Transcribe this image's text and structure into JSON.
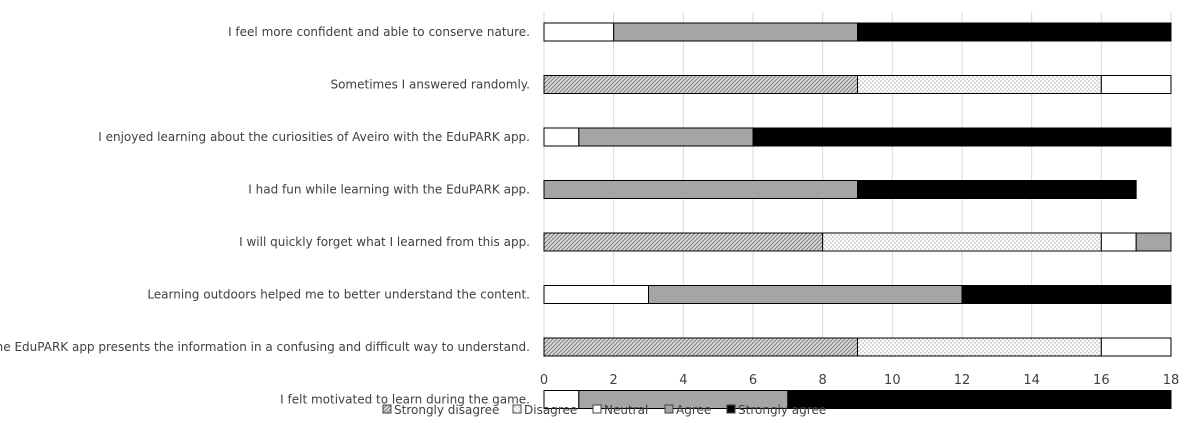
{
  "chart_data": {
    "type": "bar",
    "orientation": "horizontal",
    "stacked": true,
    "title": "",
    "xlabel": "",
    "ylabel": "",
    "xlim": [
      0,
      18
    ],
    "xticks": [
      0,
      2,
      4,
      6,
      8,
      10,
      12,
      14,
      16,
      18
    ],
    "grid": "vertical",
    "legend_position": "bottom",
    "categories": [
      "I feel more confident and able to conserve nature.",
      "Sometimes I answered randomly.",
      "I enjoyed learning about the curiosities of Aveiro with the EduPARK app.",
      "I had fun while learning with the EduPARK app.",
      "I will quickly forget what I learned from this app.",
      "Learning outdoors helped me to better understand the content.",
      "The EduPARK app presents the information in a confusing and difficult way to understand.",
      "I felt motivated to learn during the game."
    ],
    "series": [
      {
        "name": "Strongly disagree",
        "fill": "hatch",
        "values": [
          0,
          9,
          0,
          0,
          8,
          0,
          9,
          0
        ]
      },
      {
        "name": "Disagree",
        "fill": "dots",
        "values": [
          0,
          7,
          0,
          0,
          8,
          0,
          7,
          0
        ]
      },
      {
        "name": "Neutral",
        "fill": "#ffffff",
        "values": [
          2,
          2,
          1,
          0,
          1,
          3,
          2,
          1
        ]
      },
      {
        "name": "Agree",
        "fill": "#a5a5a5",
        "values": [
          7,
          0,
          5,
          9,
          1,
          9,
          0,
          6
        ]
      },
      {
        "name": "Strongly agree",
        "fill": "#000000",
        "values": [
          9,
          0,
          12,
          8,
          0,
          6,
          0,
          11
        ]
      }
    ]
  }
}
